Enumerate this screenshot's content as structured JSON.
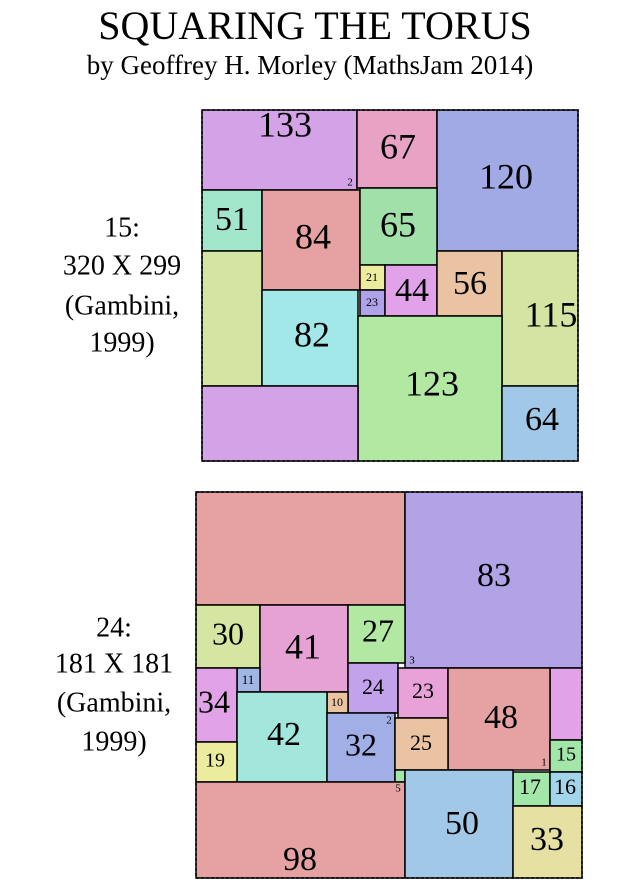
{
  "header": {
    "title": "SQUARING THE TORUS",
    "subtitle": "by Geoffrey H. Morley (MathsJam 2014)"
  },
  "puzzles": [
    {
      "caption": [
        "15:",
        "320 X 299",
        "(Gambini,",
        "1999)"
      ],
      "squares": [
        133,
        67,
        120,
        51,
        84,
        65,
        21,
        23,
        44,
        56,
        115,
        82,
        123,
        64,
        2
      ]
    },
    {
      "caption": [
        "24:",
        "181 X 181",
        "(Gambini,",
        "1999)"
      ],
      "squares": [
        83,
        30,
        41,
        27,
        3,
        11,
        34,
        24,
        23,
        48,
        10,
        42,
        32,
        2,
        25,
        19,
        1,
        15,
        5,
        17,
        16,
        98,
        50,
        33
      ]
    }
  ]
}
